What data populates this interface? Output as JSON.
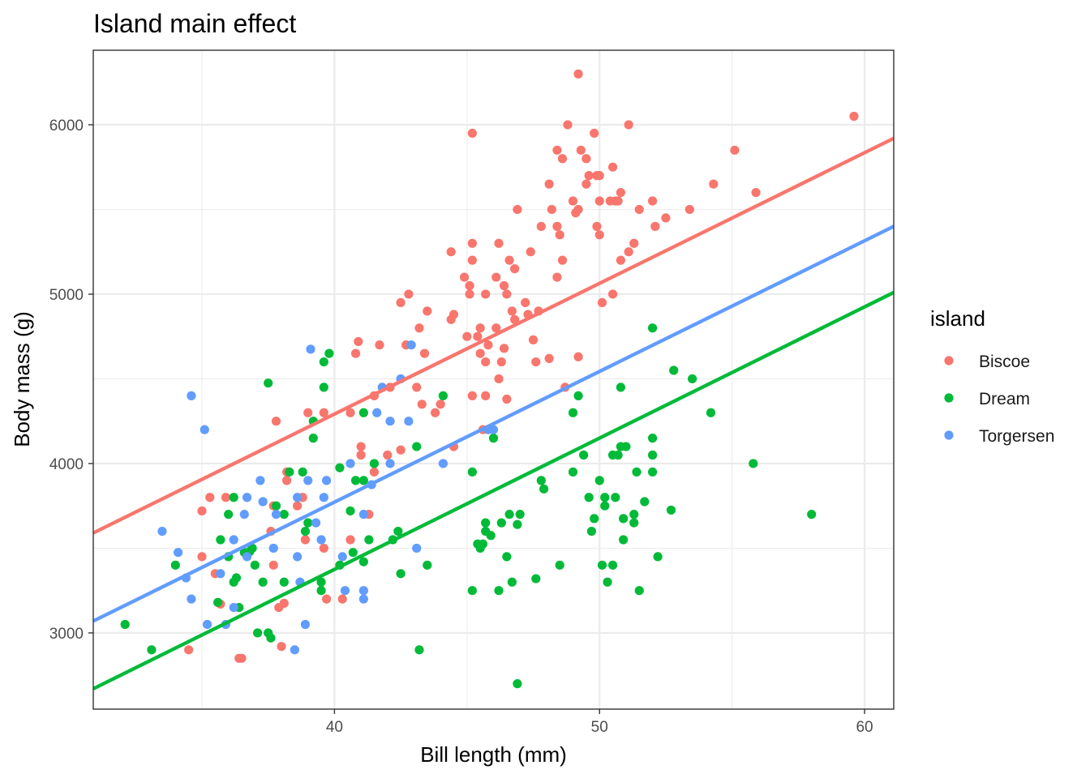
{
  "chart_data": {
    "type": "scatter",
    "title": "Island main effect",
    "xlabel": "Bill length (mm)",
    "ylabel": "Body mass (g)",
    "xlim": [
      30.9,
      61.1
    ],
    "ylim": [
      2550,
      6440
    ],
    "x_ticks": [
      40,
      50,
      60
    ],
    "x_minor_ticks": [
      35,
      45,
      55
    ],
    "y_ticks": [
      3000,
      4000,
      5000,
      6000
    ],
    "y_minor_ticks": [
      3500,
      4500,
      5500
    ],
    "grid": true,
    "legend": {
      "title": "island",
      "position": "right",
      "entries": [
        "Biscoe",
        "Dream",
        "Torgersen"
      ]
    },
    "series": [
      {
        "name": "Biscoe",
        "color": "#F8766D",
        "fit_line": [
          [
            30.9,
            3590
          ],
          [
            61.1,
            5920
          ]
        ],
        "points": [
          [
            34.5,
            2900
          ],
          [
            35.0,
            3450
          ],
          [
            35.0,
            3720
          ],
          [
            35.3,
            3800
          ],
          [
            35.5,
            3350
          ],
          [
            35.7,
            3170
          ],
          [
            35.9,
            3800
          ],
          [
            36.4,
            2850
          ],
          [
            36.5,
            2850
          ],
          [
            37.6,
            3600
          ],
          [
            37.7,
            3750
          ],
          [
            37.7,
            3400
          ],
          [
            37.8,
            4250
          ],
          [
            37.9,
            3150
          ],
          [
            38.0,
            2920
          ],
          [
            38.1,
            3175
          ],
          [
            38.2,
            3950
          ],
          [
            38.2,
            3900
          ],
          [
            38.6,
            3750
          ],
          [
            38.8,
            3800
          ],
          [
            38.9,
            3550
          ],
          [
            39.0,
            4300
          ],
          [
            39.6,
            3500
          ],
          [
            39.7,
            3200
          ],
          [
            39.6,
            4300
          ],
          [
            40.3,
            3200
          ],
          [
            40.6,
            3550
          ],
          [
            40.6,
            4300
          ],
          [
            40.8,
            4650
          ],
          [
            40.9,
            4720
          ],
          [
            41.0,
            4100
          ],
          [
            41.0,
            4050
          ],
          [
            41.3,
            3700
          ],
          [
            41.5,
            3950
          ],
          [
            41.5,
            4400
          ],
          [
            41.7,
            4700
          ],
          [
            42.0,
            4050
          ],
          [
            42.1,
            4450
          ],
          [
            42.5,
            4950
          ],
          [
            42.5,
            4080
          ],
          [
            42.8,
            5000
          ],
          [
            42.7,
            4700
          ],
          [
            43.1,
            4450
          ],
          [
            43.2,
            4800
          ],
          [
            43.3,
            4350
          ],
          [
            43.4,
            4650
          ],
          [
            43.5,
            4900
          ],
          [
            43.8,
            4300
          ],
          [
            44.0,
            4350
          ],
          [
            44.4,
            4850
          ],
          [
            44.5,
            4880
          ],
          [
            44.5,
            4100
          ],
          [
            44.4,
            5250
          ],
          [
            44.9,
            5100
          ],
          [
            45.1,
            5050
          ],
          [
            45.0,
            4750
          ],
          [
            45.1,
            5000
          ],
          [
            45.2,
            5300
          ],
          [
            45.2,
            5200
          ],
          [
            45.2,
            4400
          ],
          [
            45.2,
            5950
          ],
          [
            45.4,
            4750
          ],
          [
            45.5,
            4800
          ],
          [
            45.6,
            4200
          ],
          [
            45.5,
            4650
          ],
          [
            45.7,
            4600
          ],
          [
            45.7,
            5000
          ],
          [
            45.7,
            4400
          ],
          [
            45.8,
            4700
          ],
          [
            46.1,
            5100
          ],
          [
            46.2,
            4500
          ],
          [
            46.2,
            5300
          ],
          [
            46.1,
            4800
          ],
          [
            46.3,
            4600
          ],
          [
            46.4,
            5050
          ],
          [
            46.4,
            4680
          ],
          [
            46.5,
            4380
          ],
          [
            46.5,
            5000
          ],
          [
            46.6,
            5200
          ],
          [
            46.7,
            4900
          ],
          [
            46.8,
            4850
          ],
          [
            46.8,
            5150
          ],
          [
            46.9,
            5500
          ],
          [
            47.2,
            4950
          ],
          [
            47.3,
            4880
          ],
          [
            47.4,
            5250
          ],
          [
            47.5,
            4730
          ],
          [
            47.6,
            4600
          ],
          [
            47.8,
            5400
          ],
          [
            47.7,
            4900
          ],
          [
            48.1,
            5650
          ],
          [
            48.2,
            5500
          ],
          [
            48.4,
            5100
          ],
          [
            48.1,
            4620
          ],
          [
            48.6,
            5200
          ],
          [
            48.4,
            5400
          ],
          [
            48.5,
            5350
          ],
          [
            48.7,
            4450
          ],
          [
            48.8,
            6000
          ],
          [
            48.4,
            5850
          ],
          [
            48.6,
            5800
          ],
          [
            49.0,
            5550
          ],
          [
            49.1,
            5480
          ],
          [
            49.2,
            4630
          ],
          [
            49.2,
            5500
          ],
          [
            49.2,
            6300
          ],
          [
            49.3,
            5850
          ],
          [
            49.5,
            5650
          ],
          [
            49.5,
            5800
          ],
          [
            49.6,
            5700
          ],
          [
            49.8,
            5950
          ],
          [
            49.9,
            5400
          ],
          [
            49.9,
            5700
          ],
          [
            50.0,
            5550
          ],
          [
            50.0,
            5350
          ],
          [
            50.0,
            5700
          ],
          [
            50.1,
            4950
          ],
          [
            50.4,
            5550
          ],
          [
            50.5,
            5750
          ],
          [
            50.5,
            5000
          ],
          [
            50.6,
            5550
          ],
          [
            50.7,
            5550
          ],
          [
            50.8,
            5200
          ],
          [
            50.8,
            5600
          ],
          [
            51.1,
            5250
          ],
          [
            51.1,
            6000
          ],
          [
            51.3,
            5300
          ],
          [
            51.5,
            5500
          ],
          [
            52.0,
            5550
          ],
          [
            52.1,
            5400
          ],
          [
            52.5,
            5450
          ],
          [
            53.4,
            5500
          ],
          [
            54.3,
            5650
          ],
          [
            55.1,
            5850
          ],
          [
            55.9,
            5600
          ],
          [
            59.6,
            6050
          ]
        ]
      },
      {
        "name": "Dream",
        "color": "#00BA38",
        "fit_line": [
          [
            30.9,
            2670
          ],
          [
            61.1,
            5010
          ]
        ],
        "points": [
          [
            32.1,
            3050
          ],
          [
            33.1,
            2900
          ],
          [
            34.0,
            3400
          ],
          [
            35.7,
            3550
          ],
          [
            35.6,
            3180
          ],
          [
            36.0,
            3700
          ],
          [
            36.0,
            3450
          ],
          [
            36.2,
            3300
          ],
          [
            36.2,
            3800
          ],
          [
            36.3,
            3325
          ],
          [
            36.4,
            3150
          ],
          [
            36.6,
            3475
          ],
          [
            36.9,
            3500
          ],
          [
            36.8,
            3480
          ],
          [
            37.0,
            3400
          ],
          [
            37.1,
            3000
          ],
          [
            37.3,
            3300
          ],
          [
            37.5,
            3000
          ],
          [
            37.5,
            4475
          ],
          [
            37.6,
            2970
          ],
          [
            37.8,
            3750
          ],
          [
            38.1,
            3700
          ],
          [
            38.3,
            3950
          ],
          [
            38.1,
            3300
          ],
          [
            38.8,
            3950
          ],
          [
            38.9,
            3600
          ],
          [
            39.0,
            3650
          ],
          [
            39.2,
            4250
          ],
          [
            39.2,
            4150
          ],
          [
            39.5,
            3300
          ],
          [
            39.5,
            3250
          ],
          [
            39.6,
            4450
          ],
          [
            39.6,
            4600
          ],
          [
            39.8,
            4650
          ],
          [
            40.2,
            3400
          ],
          [
            40.2,
            3975
          ],
          [
            40.6,
            3720
          ],
          [
            40.7,
            3475
          ],
          [
            40.8,
            3900
          ],
          [
            41.1,
            3900
          ],
          [
            41.1,
            4300
          ],
          [
            41.1,
            3420
          ],
          [
            41.3,
            3550
          ],
          [
            41.5,
            4000
          ],
          [
            42.2,
            3550
          ],
          [
            42.4,
            3600
          ],
          [
            42.5,
            3350
          ],
          [
            43.1,
            4100
          ],
          [
            43.2,
            2900
          ],
          [
            43.5,
            3400
          ],
          [
            44.1,
            4400
          ],
          [
            45.2,
            3950
          ],
          [
            45.2,
            3250
          ],
          [
            45.4,
            3525
          ],
          [
            45.5,
            3500
          ],
          [
            45.6,
            3525
          ],
          [
            45.7,
            3650
          ],
          [
            45.7,
            3600
          ],
          [
            45.9,
            3575
          ],
          [
            46.0,
            4150
          ],
          [
            46.2,
            3250
          ],
          [
            46.3,
            3650
          ],
          [
            46.5,
            3450
          ],
          [
            46.6,
            3700
          ],
          [
            46.7,
            3300
          ],
          [
            46.9,
            3640
          ],
          [
            46.9,
            2700
          ],
          [
            47.0,
            3700
          ],
          [
            47.6,
            3320
          ],
          [
            47.8,
            3900
          ],
          [
            47.9,
            3850
          ],
          [
            48.5,
            3400
          ],
          [
            49.0,
            4300
          ],
          [
            49.0,
            3950
          ],
          [
            49.2,
            4400
          ],
          [
            49.4,
            4050
          ],
          [
            49.6,
            3800
          ],
          [
            49.7,
            3600
          ],
          [
            49.8,
            3675
          ],
          [
            50.0,
            3900
          ],
          [
            50.1,
            3400
          ],
          [
            50.2,
            3750
          ],
          [
            50.2,
            3800
          ],
          [
            50.3,
            3300
          ],
          [
            50.5,
            4050
          ],
          [
            50.5,
            3400
          ],
          [
            50.6,
            3800
          ],
          [
            50.7,
            4050
          ],
          [
            50.8,
            4450
          ],
          [
            50.8,
            4100
          ],
          [
            50.9,
            3675
          ],
          [
            50.9,
            3550
          ],
          [
            51.0,
            4100
          ],
          [
            51.3,
            3650
          ],
          [
            51.3,
            3700
          ],
          [
            51.4,
            3950
          ],
          [
            51.5,
            3250
          ],
          [
            51.7,
            3775
          ],
          [
            52.0,
            3950
          ],
          [
            52.0,
            4150
          ],
          [
            52.0,
            4050
          ],
          [
            52.0,
            4800
          ],
          [
            52.2,
            3450
          ],
          [
            52.7,
            3725
          ],
          [
            53.5,
            4500
          ],
          [
            52.8,
            4550
          ],
          [
            54.2,
            4300
          ],
          [
            55.8,
            4000
          ],
          [
            58.0,
            3700
          ]
        ]
      },
      {
        "name": "Torgersen",
        "color": "#619CFF",
        "fit_line": [
          [
            30.9,
            3070
          ],
          [
            61.1,
            5400
          ]
        ],
        "points": [
          [
            33.5,
            3600
          ],
          [
            34.1,
            3475
          ],
          [
            34.4,
            3325
          ],
          [
            34.6,
            3200
          ],
          [
            34.6,
            4400
          ],
          [
            35.1,
            4200
          ],
          [
            35.2,
            3050
          ],
          [
            35.7,
            3350
          ],
          [
            35.9,
            3050
          ],
          [
            36.2,
            3550
          ],
          [
            36.2,
            3150
          ],
          [
            36.6,
            3700
          ],
          [
            36.7,
            3450
          ],
          [
            36.7,
            3800
          ],
          [
            37.2,
            3900
          ],
          [
            37.3,
            3775
          ],
          [
            37.7,
            3500
          ],
          [
            37.8,
            3700
          ],
          [
            38.5,
            2900
          ],
          [
            38.6,
            3800
          ],
          [
            38.6,
            3450
          ],
          [
            38.7,
            3300
          ],
          [
            38.9,
            3050
          ],
          [
            39.0,
            3900
          ],
          [
            39.1,
            4675
          ],
          [
            39.3,
            3650
          ],
          [
            39.5,
            3550
          ],
          [
            39.6,
            3800
          ],
          [
            39.7,
            3900
          ],
          [
            40.3,
            3450
          ],
          [
            40.4,
            3250
          ],
          [
            40.6,
            4000
          ],
          [
            41.1,
            3700
          ],
          [
            41.1,
            3250
          ],
          [
            41.1,
            3200
          ],
          [
            41.4,
            3875
          ],
          [
            41.6,
            4300
          ],
          [
            41.8,
            4450
          ],
          [
            42.1,
            4250
          ],
          [
            42.1,
            4000
          ],
          [
            42.5,
            4500
          ],
          [
            42.8,
            4250
          ],
          [
            42.9,
            4700
          ],
          [
            43.1,
            3500
          ],
          [
            44.1,
            4000
          ],
          [
            45.8,
            4200
          ],
          [
            46.0,
            4200
          ]
        ]
      }
    ]
  }
}
